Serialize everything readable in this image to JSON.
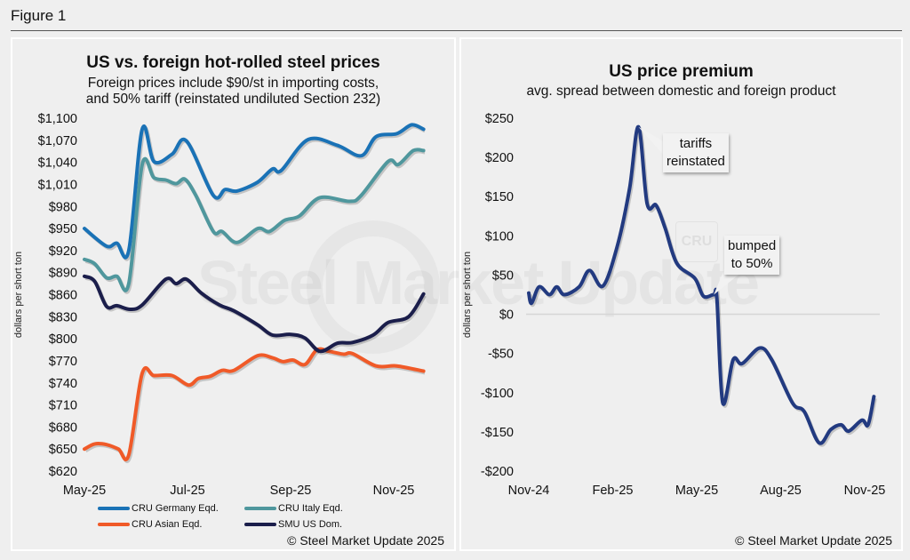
{
  "figure_title": "Figure 1",
  "watermark": {
    "text": "Steel Market Update",
    "logo": "CRU"
  },
  "chart_data": [
    {
      "type": "line",
      "title": "US vs. foreign hot-rolled steel prices",
      "subtitle": [
        "Foreign prices include $90/st in importing costs,",
        "and 50% tariff (reinstated undiluted Section 232)"
      ],
      "xlabel": "",
      "ylabel": "dollars per short ton",
      "x_unit": "months since May 2025",
      "xlim": [
        0,
        6.6
      ],
      "ylim": [
        620,
        1100
      ],
      "x_ticks": [
        {
          "x": 0,
          "label": "May-25"
        },
        {
          "x": 2,
          "label": "Jul-25"
        },
        {
          "x": 4,
          "label": "Sep-25"
        },
        {
          "x": 6,
          "label": "Nov-25"
        }
      ],
      "y_ticks": [
        {
          "y": 1100,
          "label": "$1,100"
        },
        {
          "y": 1070,
          "label": "$1,070"
        },
        {
          "y": 1040,
          "label": "$1,040"
        },
        {
          "y": 1010,
          "label": "$1,010"
        },
        {
          "y": 980,
          "label": "$980"
        },
        {
          "y": 950,
          "label": "$950"
        },
        {
          "y": 920,
          "label": "$920"
        },
        {
          "y": 890,
          "label": "$890"
        },
        {
          "y": 860,
          "label": "$860"
        },
        {
          "y": 830,
          "label": "$830"
        },
        {
          "y": 800,
          "label": "$800"
        },
        {
          "y": 770,
          "label": "$770"
        },
        {
          "y": 740,
          "label": "$740"
        },
        {
          "y": 710,
          "label": "$710"
        },
        {
          "y": 680,
          "label": "$680"
        },
        {
          "y": 650,
          "label": "$650"
        },
        {
          "y": 620,
          "label": "$620"
        }
      ],
      "legend_position": "bottom",
      "series": [
        {
          "name": "CRU Germany Eqd.",
          "color": "#1a72b6",
          "points": [
            [
              0,
              950
            ],
            [
              0.43,
              926
            ],
            [
              0.63,
              930
            ],
            [
              0.86,
              920
            ],
            [
              1.12,
              1085
            ],
            [
              1.35,
              1041
            ],
            [
              1.7,
              1051
            ],
            [
              1.98,
              1069
            ],
            [
              2.5,
              995
            ],
            [
              2.73,
              1003
            ],
            [
              2.96,
              1001
            ],
            [
              3.36,
              1013
            ],
            [
              3.65,
              1031
            ],
            [
              3.82,
              1029
            ],
            [
              4.34,
              1071
            ],
            [
              4.91,
              1063
            ],
            [
              5.37,
              1049
            ],
            [
              5.66,
              1075
            ],
            [
              6.06,
              1079
            ],
            [
              6.35,
              1091
            ],
            [
              6.58,
              1085
            ]
          ]
        },
        {
          "name": "CRU Italy Eqd.",
          "color": "#4f979d",
          "points": [
            [
              0,
              908
            ],
            [
              0.2,
              902
            ],
            [
              0.43,
              883
            ],
            [
              0.63,
              885
            ],
            [
              0.86,
              875
            ],
            [
              1.12,
              1037
            ],
            [
              1.35,
              1019
            ],
            [
              1.58,
              1016
            ],
            [
              1.78,
              1011
            ],
            [
              1.95,
              1017
            ],
            [
              2.16,
              995
            ],
            [
              2.5,
              946
            ],
            [
              2.67,
              946
            ],
            [
              2.96,
              931
            ],
            [
              3.36,
              950
            ],
            [
              3.59,
              946
            ],
            [
              3.88,
              961
            ],
            [
              4.17,
              967
            ],
            [
              4.57,
              992
            ],
            [
              5.14,
              987
            ],
            [
              5.37,
              995
            ],
            [
              5.89,
              1041
            ],
            [
              6.09,
              1037
            ],
            [
              6.38,
              1056
            ],
            [
              6.58,
              1056
            ]
          ]
        },
        {
          "name": "CRU Asian Eqd.",
          "color": "#f05a28",
          "points": [
            [
              0,
              650
            ],
            [
              0.2,
              657
            ],
            [
              0.43,
              656
            ],
            [
              0.66,
              650
            ],
            [
              0.86,
              642
            ],
            [
              1.12,
              753
            ],
            [
              1.35,
              750
            ],
            [
              1.7,
              750
            ],
            [
              2.02,
              737
            ],
            [
              2.21,
              746
            ],
            [
              2.44,
              749
            ],
            [
              2.67,
              757
            ],
            [
              2.9,
              757
            ],
            [
              3.36,
              777
            ],
            [
              3.65,
              774
            ],
            [
              3.85,
              769
            ],
            [
              4.05,
              771
            ],
            [
              4.28,
              765
            ],
            [
              4.51,
              785
            ],
            [
              4.74,
              783
            ],
            [
              5.03,
              779
            ],
            [
              5.2,
              780
            ],
            [
              5.66,
              763
            ],
            [
              6.06,
              763
            ],
            [
              6.58,
              756
            ]
          ]
        },
        {
          "name": "SMU US Dom.",
          "color": "#1b1e4b",
          "points": [
            [
              0,
              885
            ],
            [
              0.2,
              878
            ],
            [
              0.43,
              844
            ],
            [
              0.63,
              845
            ],
            [
              0.89,
              840
            ],
            [
              1.12,
              846
            ],
            [
              1.58,
              881
            ],
            [
              1.78,
              875
            ],
            [
              1.98,
              881
            ],
            [
              2.27,
              862
            ],
            [
              2.62,
              846
            ],
            [
              2.9,
              838
            ],
            [
              3.36,
              819
            ],
            [
              3.65,
              805
            ],
            [
              4.0,
              806
            ],
            [
              4.28,
              801
            ],
            [
              4.57,
              783
            ],
            [
              4.91,
              794
            ],
            [
              5.2,
              795
            ],
            [
              5.6,
              805
            ],
            [
              5.89,
              822
            ],
            [
              6.29,
              830
            ],
            [
              6.58,
              861
            ]
          ]
        }
      ],
      "credit": "© Steel Market Update 2025"
    },
    {
      "type": "line",
      "title": "US price premium",
      "subtitle": [
        "avg. spread between domestic and foreign product"
      ],
      "xlabel": "",
      "ylabel": "dollars per short ton",
      "x_unit": "months since Nov 2024",
      "xlim": [
        0,
        12.4
      ],
      "ylim": [
        -200,
        250
      ],
      "x_ticks": [
        {
          "x": 0,
          "label": "Nov-24"
        },
        {
          "x": 3,
          "label": "Feb-25"
        },
        {
          "x": 6,
          "label": "May-25"
        },
        {
          "x": 9,
          "label": "Aug-25"
        },
        {
          "x": 12,
          "label": "Nov-25"
        }
      ],
      "y_ticks": [
        {
          "y": 250,
          "label": "$250"
        },
        {
          "y": 200,
          "label": "$200"
        },
        {
          "y": 150,
          "label": "$150"
        },
        {
          "y": 100,
          "label": "$100"
        },
        {
          "y": 50,
          "label": "$50"
        },
        {
          "y": 0,
          "label": "$0"
        },
        {
          "y": -50,
          "label": "-$50"
        },
        {
          "y": -100,
          "label": "-$100"
        },
        {
          "y": -150,
          "label": "-$150"
        },
        {
          "y": -200,
          "label": "-$200"
        }
      ],
      "series": [
        {
          "name": "US price premium",
          "color": "#223a80",
          "points": [
            [
              0,
              27
            ],
            [
              0.1,
              14
            ],
            [
              0.37,
              35
            ],
            [
              0.74,
              25
            ],
            [
              1.0,
              35
            ],
            [
              1.27,
              25
            ],
            [
              1.8,
              35
            ],
            [
              2.17,
              56
            ],
            [
              2.65,
              36
            ],
            [
              3.17,
              88
            ],
            [
              3.6,
              160
            ],
            [
              3.92,
              239
            ],
            [
              4.23,
              141
            ],
            [
              4.55,
              139
            ],
            [
              4.87,
              110
            ],
            [
              5.29,
              65
            ],
            [
              5.93,
              46
            ],
            [
              6.24,
              23
            ],
            [
              6.61,
              25
            ],
            [
              6.72,
              20
            ],
            [
              6.93,
              -113
            ],
            [
              7.3,
              -58
            ],
            [
              7.62,
              -63
            ],
            [
              8.25,
              -43
            ],
            [
              8.68,
              -58
            ],
            [
              9.42,
              -113
            ],
            [
              9.84,
              -124
            ],
            [
              10.37,
              -164
            ],
            [
              10.79,
              -147
            ],
            [
              11.16,
              -141
            ],
            [
              11.43,
              -149
            ],
            [
              11.9,
              -135
            ],
            [
              12.12,
              -141
            ],
            [
              12.33,
              -105
            ]
          ]
        }
      ],
      "annotations": [
        {
          "text": [
            "tariffs",
            "reinstated"
          ],
          "x": 3.92,
          "y": 239
        },
        {
          "text": [
            "bumped",
            "to 50%"
          ],
          "x": 6.61,
          "y": 25
        }
      ],
      "credit": "© Steel Market Update 2025"
    }
  ]
}
